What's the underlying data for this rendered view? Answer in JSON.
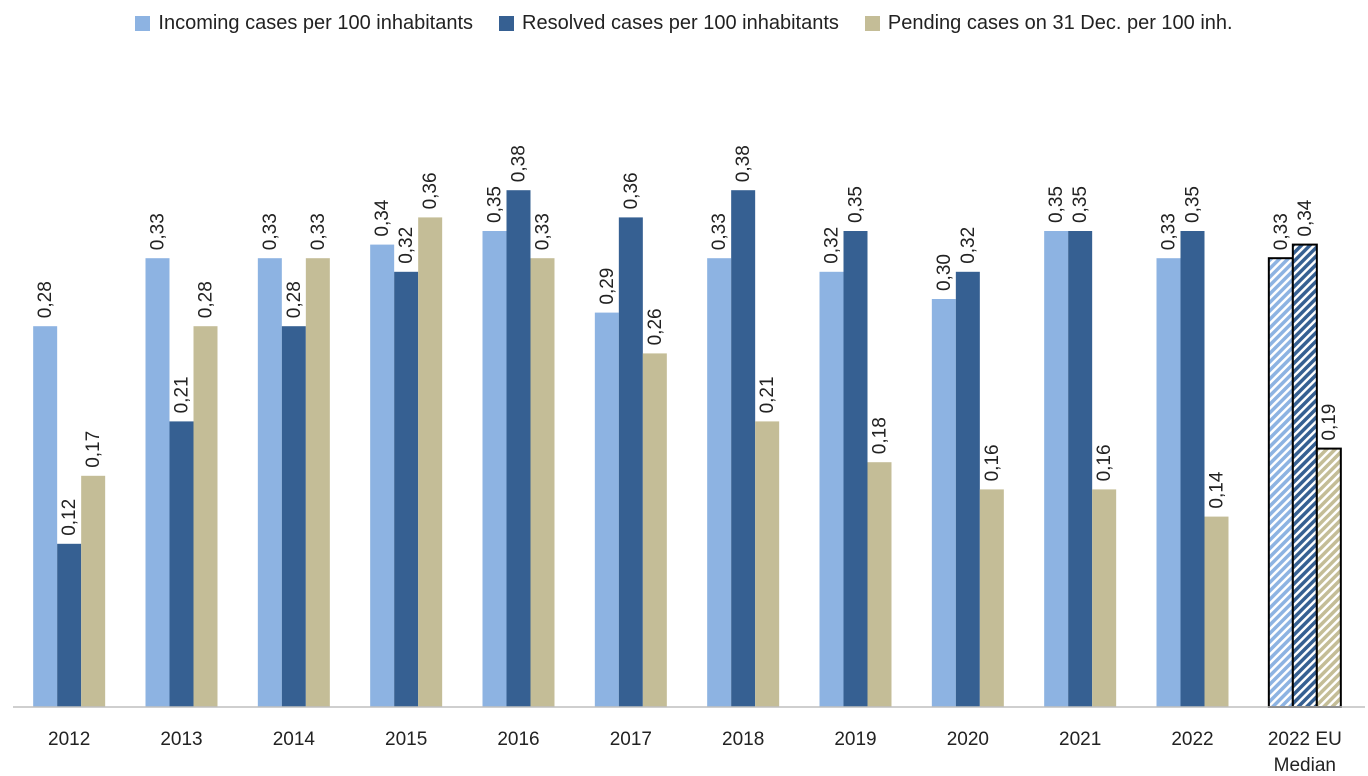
{
  "chart_data": {
    "type": "bar",
    "categories": [
      "2012",
      "2013",
      "2014",
      "2015",
      "2016",
      "2017",
      "2018",
      "2019",
      "2020",
      "2021",
      "2022",
      "2022 EU Median"
    ],
    "series": [
      {
        "name": "Incoming cases per 100 inhabitants",
        "color": "#8db3e2",
        "values": [
          0.28,
          0.33,
          0.33,
          0.34,
          0.35,
          0.29,
          0.33,
          0.32,
          0.3,
          0.35,
          0.33,
          0.33
        ],
        "value_labels": [
          "0,28",
          "0,33",
          "0,33",
          "0,34",
          "0,35",
          "0,29",
          "0,33",
          "0,32",
          "0,30",
          "0,35",
          "0,33",
          "0,33"
        ]
      },
      {
        "name": "Resolved cases per 100 inhabitants",
        "color": "#366092",
        "values": [
          0.12,
          0.21,
          0.28,
          0.32,
          0.38,
          0.36,
          0.38,
          0.35,
          0.32,
          0.35,
          0.35,
          0.34
        ],
        "value_labels": [
          "0,12",
          "0,21",
          "0,28",
          "0,32",
          "0,38",
          "0,36",
          "0,38",
          "0,35",
          "0,32",
          "0,35",
          "0,35",
          "0,34"
        ]
      },
      {
        "name": "Pending cases on 31 Dec. per 100 inh.",
        "color": "#c4bd97",
        "values": [
          0.17,
          0.28,
          0.33,
          0.36,
          0.33,
          0.26,
          0.21,
          0.18,
          0.16,
          0.16,
          0.14,
          0.19
        ],
        "value_labels": [
          "0,17",
          "0,28",
          "0,33",
          "0,36",
          "0,33",
          "0,26",
          "0,21",
          "0,18",
          "0,16",
          "0,16",
          "0,14",
          "0,19"
        ]
      }
    ],
    "ylim": [
      0,
      0.4
    ],
    "hatched_indices": [
      11
    ],
    "legend": "top"
  }
}
